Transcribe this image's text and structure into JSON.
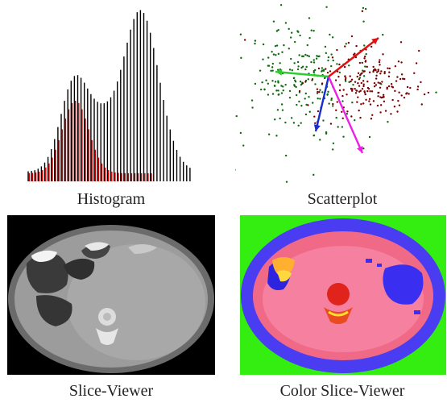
{
  "captions": {
    "histogram": "Histogram",
    "scatterplot": "Scatterplot",
    "slice_viewer": "Slice-Viewer",
    "color_slice_viewer": "Color Slice-Viewer"
  },
  "colors": {
    "histogram_main": "#000000",
    "histogram_overlay": "#cc0000",
    "scatter_dark_red": "#7a0000",
    "scatter_dark_green": "#0f6a0f",
    "arrow_red": "#e11010",
    "arrow_green": "#2ecc2e",
    "arrow_blue": "#1a2bd1",
    "arrow_magenta": "#ee1fe6",
    "color_bg_green": "#33ee10",
    "color_body_blue": "#4a3cf0",
    "color_tissue_pink": "#f26a8c"
  },
  "icons": {
    "histogram": "bar-histogram",
    "scatterplot": "scatter-with-axes",
    "slice_viewer": "ct-slice-grayscale",
    "color_slice_viewer": "ct-slice-color"
  }
}
